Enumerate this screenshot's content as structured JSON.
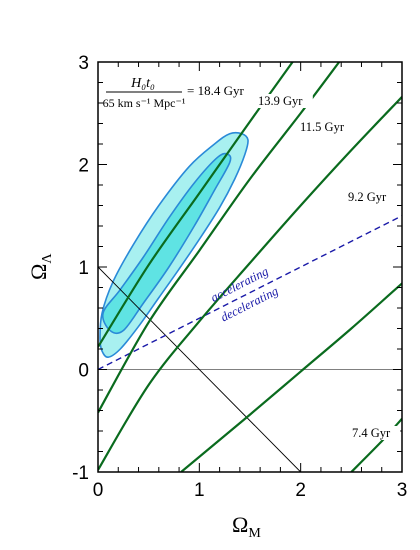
{
  "chart_data": {
    "type": "line",
    "xlabel": "Ω",
    "xlabel_sub": "M",
    "ylabel": "Ω",
    "ylabel_sub": "Λ",
    "xlim": [
      0,
      3
    ],
    "ylim": [
      -1,
      3
    ],
    "x_ticks": [
      "0",
      "1",
      "2",
      "3"
    ],
    "y_ticks": [
      "-1",
      "0",
      "1",
      "2",
      "3"
    ],
    "grid": false,
    "colors": {
      "age_curves": "#0a6b1e",
      "contour_outer_fill": "#a8f0f0",
      "contour_inner_fill": "#5fe3e3",
      "contour_stroke": "#2a8ad8",
      "accel_line": "#1a1aa8",
      "reference_line": "#000000",
      "zero_line": "#808080"
    },
    "formula": {
      "numerator": "H₀t₀",
      "denominator": "65 km s⁻¹ Mpc⁻¹",
      "equals": "= 18.4 Gyr"
    },
    "age_contours": [
      {
        "label": "13.9 Gyr",
        "points": [
          [
            0,
            0.22
          ],
          [
            0.5,
            1.02
          ],
          [
            1.0,
            1.72
          ],
          [
            1.5,
            2.42
          ],
          [
            1.92,
            3.0
          ]
        ]
      },
      {
        "label": "11.5 Gyr",
        "points": [
          [
            0,
            -0.42
          ],
          [
            0.5,
            0.46
          ],
          [
            1.0,
            1.16
          ],
          [
            1.5,
            1.86
          ],
          [
            2.0,
            2.5
          ],
          [
            2.38,
            3.0
          ]
        ]
      },
      {
        "label": "9.2 Gyr",
        "points": [
          [
            0,
            -0.98
          ],
          [
            0.5,
            -0.15
          ],
          [
            1.0,
            0.47
          ],
          [
            1.5,
            1.04
          ],
          [
            2.0,
            1.6
          ],
          [
            2.5,
            2.14
          ],
          [
            3.0,
            2.66
          ]
        ]
      },
      {
        "label": "",
        "points": [
          [
            0.82,
            -1.0
          ],
          [
            1.5,
            -0.44
          ],
          [
            2.0,
            -0.02
          ],
          [
            2.5,
            0.4
          ],
          [
            3.0,
            0.84
          ]
        ]
      },
      {
        "label": "7.4 Gyr",
        "points": [
          [
            2.5,
            -1.0
          ],
          [
            2.8,
            -0.7
          ],
          [
            3.0,
            -0.48
          ]
        ]
      }
    ],
    "accel_line": {
      "points": [
        [
          0,
          0
        ],
        [
          3,
          1.5
        ]
      ],
      "labels": [
        "accelerating",
        "decelerating"
      ]
    },
    "reference_line": {
      "points": [
        [
          0,
          1
        ],
        [
          2,
          -1
        ]
      ]
    },
    "confidence_regions": [
      {
        "name": "outer",
        "points": [
          [
            0.02,
            0.3
          ],
          [
            0.04,
            0.18
          ],
          [
            0.1,
            0.12
          ],
          [
            0.22,
            0.2
          ],
          [
            0.4,
            0.42
          ],
          [
            0.6,
            0.7
          ],
          [
            0.8,
            0.98
          ],
          [
            1.0,
            1.27
          ],
          [
            1.2,
            1.58
          ],
          [
            1.35,
            1.86
          ],
          [
            1.45,
            2.1
          ],
          [
            1.48,
            2.24
          ],
          [
            1.42,
            2.3
          ],
          [
            1.3,
            2.3
          ],
          [
            1.15,
            2.2
          ],
          [
            0.9,
            1.98
          ],
          [
            0.6,
            1.6
          ],
          [
            0.35,
            1.22
          ],
          [
            0.15,
            0.86
          ],
          [
            0.04,
            0.55
          ]
        ]
      },
      {
        "name": "inner",
        "points": [
          [
            0.05,
            0.55
          ],
          [
            0.12,
            0.38
          ],
          [
            0.25,
            0.38
          ],
          [
            0.45,
            0.65
          ],
          [
            0.7,
            1.0
          ],
          [
            0.95,
            1.4
          ],
          [
            1.15,
            1.75
          ],
          [
            1.3,
            2.02
          ],
          [
            1.28,
            2.1
          ],
          [
            1.18,
            2.07
          ],
          [
            0.95,
            1.82
          ],
          [
            0.7,
            1.48
          ],
          [
            0.45,
            1.1
          ],
          [
            0.22,
            0.78
          ]
        ]
      }
    ]
  }
}
